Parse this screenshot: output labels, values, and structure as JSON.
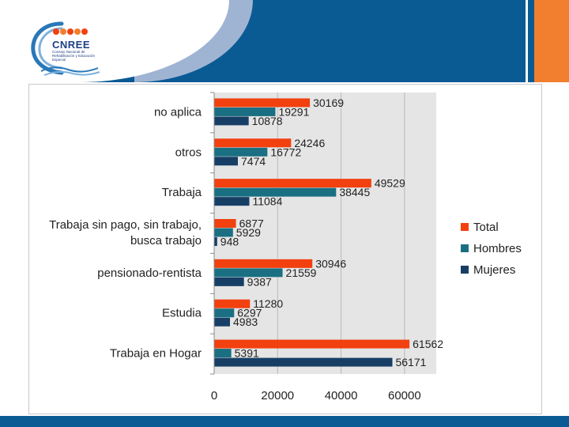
{
  "logo": {
    "title": "CNREE",
    "subtitle": "Consejo Nacional de Rehabilitación y Educación Especial"
  },
  "colors": {
    "total": "#f2400f",
    "hombres": "#1b6f82",
    "mujeres": "#173f66",
    "plot_bg": "#e5e5e5",
    "header": "#0a5a94",
    "accent": "#f27f2f"
  },
  "chart_data": {
    "type": "bar",
    "orientation": "horizontal",
    "title": "",
    "xlabel": "",
    "ylabel": "",
    "xlim": [
      0,
      70000
    ],
    "ticks": [
      0,
      20000,
      40000,
      60000
    ],
    "tick_labels": [
      "0",
      "20000",
      "40000",
      "60000"
    ],
    "grid": true,
    "legend_position": "right",
    "categories": [
      [
        "no aplica"
      ],
      [
        "otros"
      ],
      [
        "Trabaja"
      ],
      [
        "Trabaja sin pago, sin trabajo,",
        "busca trabajo"
      ],
      [
        "pensionado-rentista"
      ],
      [
        "Estudia"
      ],
      [
        "Trabaja en Hogar"
      ]
    ],
    "series": [
      {
        "name": "Total",
        "key": "total",
        "values": [
          30169,
          24246,
          49529,
          6877,
          30946,
          11280,
          61562
        ]
      },
      {
        "name": "Hombres",
        "key": "hombres",
        "values": [
          19291,
          16772,
          38445,
          5929,
          21559,
          6297,
          5391
        ]
      },
      {
        "name": "Mujeres",
        "key": "mujeres",
        "values": [
          10878,
          7474,
          11084,
          948,
          9387,
          4983,
          56171
        ]
      }
    ]
  }
}
